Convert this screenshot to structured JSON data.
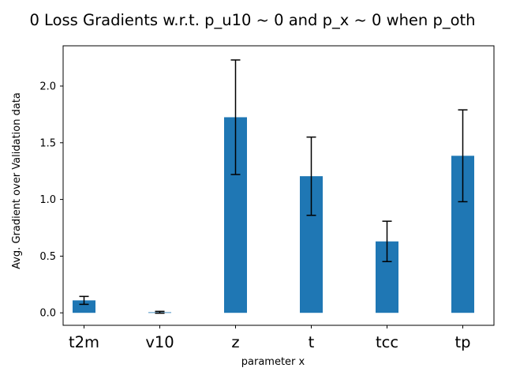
{
  "chart_data": {
    "type": "bar",
    "title": "0 Loss Gradients w.r.t. p_u10 ~ 0 and p_x ~ 0 when p_oth",
    "xlabel": "parameter x",
    "ylabel": "Avg. Gradient over Validation data",
    "categories": [
      "t2m",
      "v10",
      "z",
      "t",
      "tcc",
      "tp"
    ],
    "values": [
      0.11,
      0.005,
      1.725,
      1.205,
      0.63,
      1.385
    ],
    "error": [
      0.035,
      0.008,
      0.505,
      0.345,
      0.178,
      0.405
    ],
    "ylim": [
      -0.11,
      2.355
    ],
    "yticks": [
      0.0,
      0.5,
      1.0,
      1.5,
      2.0
    ],
    "ytick_labels": [
      "0.0",
      "0.5",
      "1.0",
      "1.5",
      "2.0"
    ],
    "bar_color": "#1f77b4",
    "error_color": "#000000",
    "grid": false,
    "legend": "none"
  }
}
